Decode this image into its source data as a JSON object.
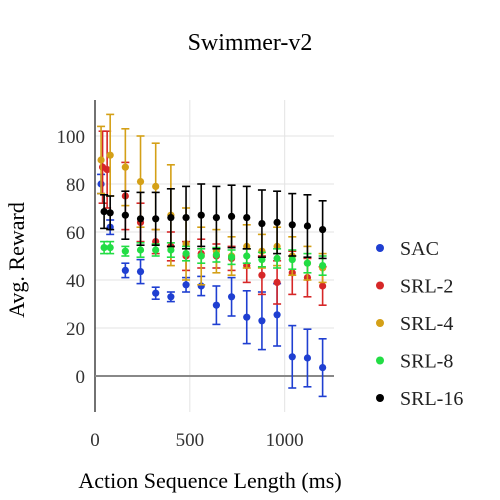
{
  "chart_data": {
    "type": "scatter",
    "title": "Swimmer-v2",
    "xlabel": "Action Sequence Length (ms)",
    "ylabel": "Avg. Reward",
    "xlim": [
      0,
      1260
    ],
    "ylim": [
      -15,
      115
    ],
    "xticks": [
      0,
      500,
      1000
    ],
    "yticks": [
      0,
      20,
      40,
      60,
      80,
      100
    ],
    "grid": true,
    "zero_line": true,
    "legend_position": "right",
    "x": [
      32,
      48,
      80,
      160,
      240,
      320,
      400,
      480,
      560,
      640,
      720,
      800,
      880,
      960,
      1040,
      1120,
      1200
    ],
    "series": [
      {
        "name": "SAC",
        "color": "#1f3fd1",
        "points": [
          {
            "x": 32,
            "y": 80,
            "err": 4
          },
          {
            "x": 80,
            "y": 62,
            "err": 3
          },
          {
            "x": 160,
            "y": 44,
            "err": 3
          },
          {
            "x": 240,
            "y": 43.5,
            "err": 5
          },
          {
            "x": 320,
            "y": 34.5,
            "err": 2.5
          },
          {
            "x": 400,
            "y": 33,
            "err": 2
          },
          {
            "x": 480,
            "y": 38,
            "err": 3
          },
          {
            "x": 560,
            "y": 37.5,
            "err": 4
          },
          {
            "x": 640,
            "y": 29.5,
            "err": 8
          },
          {
            "x": 720,
            "y": 33,
            "err": 8
          },
          {
            "x": 800,
            "y": 24.5,
            "err": 11
          },
          {
            "x": 880,
            "y": 23,
            "err": 12
          },
          {
            "x": 960,
            "y": 25.5,
            "err": 13
          },
          {
            "x": 1040,
            "y": 8,
            "err": 13
          },
          {
            "x": 1120,
            "y": 7.5,
            "err": 12
          },
          {
            "x": 1200,
            "y": 3.5,
            "err": 12
          }
        ]
      },
      {
        "name": "SRL-2",
        "color": "#d62728",
        "points": [
          {
            "x": 40,
            "y": 87,
            "err": 15
          },
          {
            "x": 64,
            "y": 86,
            "err": 16
          },
          {
            "x": 160,
            "y": 75,
            "err": 14
          },
          {
            "x": 240,
            "y": 64,
            "err": 8
          },
          {
            "x": 320,
            "y": 56,
            "err": 5
          },
          {
            "x": 400,
            "y": 54,
            "err": 6
          },
          {
            "x": 480,
            "y": 50,
            "err": 6
          },
          {
            "x": 560,
            "y": 51,
            "err": 6
          },
          {
            "x": 640,
            "y": 50,
            "err": 5
          },
          {
            "x": 720,
            "y": 49,
            "err": 5
          },
          {
            "x": 800,
            "y": 46,
            "err": 7
          },
          {
            "x": 880,
            "y": 42,
            "err": 8
          },
          {
            "x": 960,
            "y": 39,
            "err": 9
          },
          {
            "x": 1040,
            "y": 43,
            "err": 9
          },
          {
            "x": 1120,
            "y": 41,
            "err": 8
          },
          {
            "x": 1200,
            "y": 37.5,
            "err": 8
          }
        ]
      },
      {
        "name": "SRL-4",
        "color": "#d4a017",
        "points": [
          {
            "x": 32,
            "y": 90,
            "err": 14
          },
          {
            "x": 80,
            "y": 92,
            "err": 17
          },
          {
            "x": 160,
            "y": 87,
            "err": 16
          },
          {
            "x": 240,
            "y": 81,
            "err": 19
          },
          {
            "x": 320,
            "y": 79,
            "err": 18
          },
          {
            "x": 400,
            "y": 67,
            "err": 21
          },
          {
            "x": 480,
            "y": 55,
            "err": 15
          },
          {
            "x": 560,
            "y": 50,
            "err": 12
          },
          {
            "x": 640,
            "y": 52,
            "err": 9
          },
          {
            "x": 720,
            "y": 50,
            "err": 8
          },
          {
            "x": 800,
            "y": 54,
            "err": 9
          },
          {
            "x": 880,
            "y": 52,
            "err": 7
          },
          {
            "x": 960,
            "y": 54,
            "err": 8
          },
          {
            "x": 1040,
            "y": 50,
            "err": 8
          },
          {
            "x": 1120,
            "y": 47,
            "err": 7
          },
          {
            "x": 1200,
            "y": 45,
            "err": 6
          }
        ]
      },
      {
        "name": "SRL-8",
        "color": "#22dd44",
        "points": [
          {
            "x": 48,
            "y": 53.5,
            "err": 2.5
          },
          {
            "x": 80,
            "y": 53.5,
            "err": 2.5
          },
          {
            "x": 160,
            "y": 52,
            "err": 2
          },
          {
            "x": 240,
            "y": 52.5,
            "err": 3
          },
          {
            "x": 320,
            "y": 52.5,
            "err": 2.5
          },
          {
            "x": 400,
            "y": 52.5,
            "err": 3
          },
          {
            "x": 480,
            "y": 51,
            "err": 3
          },
          {
            "x": 560,
            "y": 50,
            "err": 3
          },
          {
            "x": 640,
            "y": 50.5,
            "err": 3
          },
          {
            "x": 720,
            "y": 49.5,
            "err": 3
          },
          {
            "x": 800,
            "y": 50,
            "err": 3
          },
          {
            "x": 880,
            "y": 48.5,
            "err": 3
          },
          {
            "x": 960,
            "y": 49,
            "err": 4
          },
          {
            "x": 1040,
            "y": 48.5,
            "err": 4
          },
          {
            "x": 1120,
            "y": 47,
            "err": 4
          },
          {
            "x": 1200,
            "y": 46,
            "err": 4
          }
        ]
      },
      {
        "name": "SRL-16",
        "color": "#000000",
        "points": [
          {
            "x": 48,
            "y": 68.5,
            "err": 7
          },
          {
            "x": 80,
            "y": 68,
            "err": 7
          },
          {
            "x": 160,
            "y": 67,
            "err": 10
          },
          {
            "x": 240,
            "y": 65.5,
            "err": 11
          },
          {
            "x": 320,
            "y": 65.5,
            "err": 11
          },
          {
            "x": 400,
            "y": 66,
            "err": 12
          },
          {
            "x": 480,
            "y": 66,
            "err": 13
          },
          {
            "x": 560,
            "y": 67,
            "err": 13
          },
          {
            "x": 640,
            "y": 66,
            "err": 13
          },
          {
            "x": 720,
            "y": 66.5,
            "err": 13
          },
          {
            "x": 800,
            "y": 66,
            "err": 13
          },
          {
            "x": 880,
            "y": 63.5,
            "err": 14
          },
          {
            "x": 960,
            "y": 64,
            "err": 13
          },
          {
            "x": 1040,
            "y": 63,
            "err": 13
          },
          {
            "x": 1120,
            "y": 62.5,
            "err": 13
          },
          {
            "x": 1200,
            "y": 61,
            "err": 12
          }
        ]
      }
    ]
  }
}
